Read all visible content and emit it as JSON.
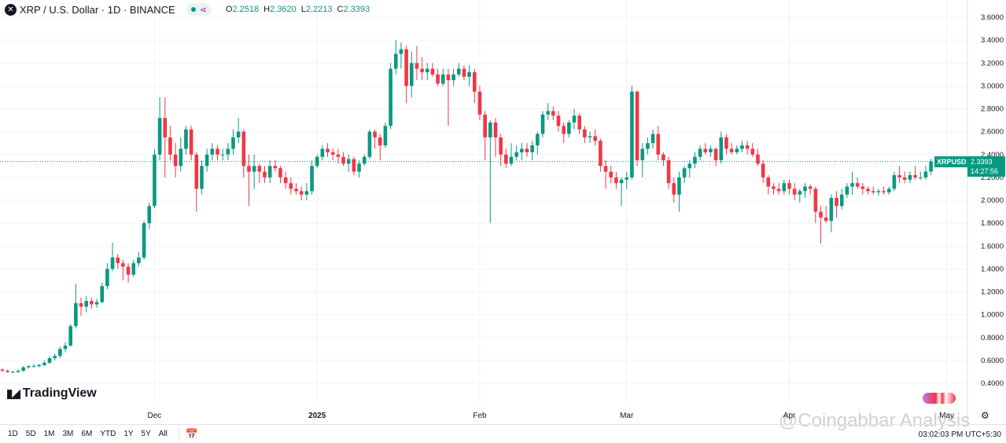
{
  "header": {
    "symbol_icon": "xrp-logo-icon",
    "title": "XRP / U.S. Dollar · 1D · BINANCE",
    "open_label": "O",
    "open": "2.2518",
    "high_label": "H",
    "high": "2.3620",
    "low_label": "L",
    "low": "2.2213",
    "close_label": "C",
    "close": "2.3393"
  },
  "brand": "TradingView",
  "price_tag": {
    "symbol": "XRPUSD",
    "price": "2.3393",
    "countdown": "14:27:56"
  },
  "ranges": [
    "1D",
    "5D",
    "1M",
    "3M",
    "6M",
    "YTD",
    "1Y",
    "5Y",
    "All"
  ],
  "clock": "03:02:03 PM UTC+5:30",
  "watermark": "@Coingabbar Analysis",
  "colors": {
    "up": "#089981",
    "down": "#f23645",
    "last_price_line": "#089981"
  },
  "chart_data": {
    "type": "candlestick",
    "interval": "1D",
    "x_start": "2024-11-02",
    "x_tick_labels": [
      {
        "label": "Dec",
        "date": "2024-12-01"
      },
      {
        "label": "2025",
        "date": "2025-01-01"
      },
      {
        "label": "Feb",
        "date": "2025-02-01"
      },
      {
        "label": "Mar",
        "date": "2025-03-01"
      },
      {
        "label": "Apr",
        "date": "2025-04-01"
      },
      {
        "label": "May",
        "date": "2025-05-01"
      }
    ],
    "y_ticks": [
      "3.6000",
      "3.4000",
      "3.2000",
      "3.0000",
      "2.8000",
      "2.6000",
      "2.4000",
      "2.2000",
      "2.0000",
      "1.8000",
      "1.6000",
      "1.4000",
      "1.2000",
      "1.0000",
      "0.8000",
      "0.6000",
      "0.4000"
    ],
    "ylim": [
      0.4,
      3.6
    ],
    "grid": true,
    "last_price": 2.3393,
    "candles_ohlc": [
      [
        0.52,
        0.53,
        0.5,
        0.51
      ],
      [
        0.51,
        0.52,
        0.49,
        0.5
      ],
      [
        0.5,
        0.51,
        0.49,
        0.5
      ],
      [
        0.5,
        0.52,
        0.49,
        0.51
      ],
      [
        0.51,
        0.55,
        0.5,
        0.54
      ],
      [
        0.54,
        0.56,
        0.53,
        0.55
      ],
      [
        0.55,
        0.57,
        0.54,
        0.55
      ],
      [
        0.55,
        0.57,
        0.54,
        0.56
      ],
      [
        0.56,
        0.6,
        0.55,
        0.58
      ],
      [
        0.58,
        0.64,
        0.57,
        0.62
      ],
      [
        0.62,
        0.66,
        0.6,
        0.64
      ],
      [
        0.64,
        0.72,
        0.62,
        0.7
      ],
      [
        0.7,
        0.76,
        0.67,
        0.73
      ],
      [
        0.73,
        0.92,
        0.72,
        0.9
      ],
      [
        0.9,
        1.27,
        0.88,
        1.1
      ],
      [
        1.1,
        1.15,
        0.99,
        1.07
      ],
      [
        1.07,
        1.16,
        1.02,
        1.12
      ],
      [
        1.12,
        1.15,
        1.05,
        1.09
      ],
      [
        1.09,
        1.14,
        1.06,
        1.11
      ],
      [
        1.11,
        1.28,
        1.1,
        1.25
      ],
      [
        1.25,
        1.45,
        1.22,
        1.4
      ],
      [
        1.4,
        1.63,
        1.38,
        1.5
      ],
      [
        1.5,
        1.53,
        1.4,
        1.45
      ],
      [
        1.45,
        1.48,
        1.3,
        1.42
      ],
      [
        1.42,
        1.45,
        1.28,
        1.35
      ],
      [
        1.35,
        1.48,
        1.33,
        1.45
      ],
      [
        1.45,
        1.55,
        1.42,
        1.5
      ],
      [
        1.5,
        1.82,
        1.48,
        1.8
      ],
      [
        1.8,
        1.98,
        1.75,
        1.95
      ],
      [
        1.95,
        2.45,
        1.93,
        2.4
      ],
      [
        2.4,
        2.9,
        2.35,
        2.72
      ],
      [
        2.72,
        2.9,
        2.2,
        2.55
      ],
      [
        2.55,
        2.65,
        2.35,
        2.4
      ],
      [
        2.4,
        2.5,
        2.2,
        2.3
      ],
      [
        2.3,
        2.55,
        2.25,
        2.45
      ],
      [
        2.45,
        2.65,
        2.4,
        2.62
      ],
      [
        2.62,
        2.65,
        2.35,
        2.4
      ],
      [
        2.4,
        2.42,
        1.9,
        2.1
      ],
      [
        2.1,
        2.35,
        2.05,
        2.3
      ],
      [
        2.3,
        2.45,
        2.25,
        2.4
      ],
      [
        2.4,
        2.5,
        2.35,
        2.45
      ],
      [
        2.45,
        2.48,
        2.35,
        2.4
      ],
      [
        2.4,
        2.45,
        2.35,
        2.4
      ],
      [
        2.4,
        2.5,
        2.35,
        2.45
      ],
      [
        2.45,
        2.62,
        2.4,
        2.55
      ],
      [
        2.55,
        2.72,
        2.5,
        2.6
      ],
      [
        2.6,
        2.62,
        2.2,
        2.3
      ],
      [
        2.3,
        2.4,
        1.95,
        2.25
      ],
      [
        2.25,
        2.4,
        2.1,
        2.3
      ],
      [
        2.3,
        2.32,
        2.15,
        2.25
      ],
      [
        2.25,
        2.3,
        2.15,
        2.2
      ],
      [
        2.2,
        2.35,
        2.15,
        2.3
      ],
      [
        2.3,
        2.35,
        2.25,
        2.28
      ],
      [
        2.28,
        2.3,
        2.15,
        2.2
      ],
      [
        2.2,
        2.25,
        2.1,
        2.15
      ],
      [
        2.15,
        2.2,
        2.05,
        2.1
      ],
      [
        2.1,
        2.15,
        2.05,
        2.08
      ],
      [
        2.08,
        2.12,
        2.0,
        2.05
      ],
      [
        2.05,
        2.15,
        2.0,
        2.08
      ],
      [
        2.08,
        2.35,
        2.05,
        2.3
      ],
      [
        2.3,
        2.4,
        2.28,
        2.38
      ],
      [
        2.38,
        2.48,
        2.35,
        2.45
      ],
      [
        2.45,
        2.5,
        2.38,
        2.42
      ],
      [
        2.42,
        2.45,
        2.35,
        2.4
      ],
      [
        2.4,
        2.45,
        2.32,
        2.38
      ],
      [
        2.38,
        2.42,
        2.3,
        2.32
      ],
      [
        2.32,
        2.4,
        2.25,
        2.36
      ],
      [
        2.36,
        2.38,
        2.22,
        2.25
      ],
      [
        2.25,
        2.35,
        2.2,
        2.32
      ],
      [
        2.32,
        2.4,
        2.3,
        2.38
      ],
      [
        2.38,
        2.62,
        2.36,
        2.6
      ],
      [
        2.6,
        2.62,
        2.45,
        2.55
      ],
      [
        2.55,
        2.58,
        2.35,
        2.48
      ],
      [
        2.48,
        2.68,
        2.46,
        2.65
      ],
      [
        2.65,
        3.2,
        2.62,
        3.15
      ],
      [
        3.15,
        3.4,
        3.1,
        3.28
      ],
      [
        3.28,
        3.38,
        3.15,
        3.32
      ],
      [
        3.32,
        3.35,
        2.85,
        3.0
      ],
      [
        3.0,
        3.3,
        2.9,
        3.2
      ],
      [
        3.2,
        3.35,
        3.05,
        3.15
      ],
      [
        3.15,
        3.25,
        3.05,
        3.12
      ],
      [
        3.12,
        3.2,
        3.05,
        3.15
      ],
      [
        3.15,
        3.2,
        3.08,
        3.1
      ],
      [
        3.1,
        3.15,
        3.0,
        3.02
      ],
      [
        3.02,
        3.15,
        3.0,
        3.1
      ],
      [
        3.1,
        3.15,
        2.65,
        3.05
      ],
      [
        3.05,
        3.15,
        3.0,
        3.1
      ],
      [
        3.1,
        3.2,
        3.08,
        3.15
      ],
      [
        3.15,
        3.18,
        3.05,
        3.08
      ],
      [
        3.08,
        3.18,
        3.0,
        3.12
      ],
      [
        3.12,
        3.15,
        2.85,
        2.95
      ],
      [
        2.95,
        3.0,
        2.7,
        2.75
      ],
      [
        2.75,
        2.78,
        2.35,
        2.55
      ],
      [
        2.55,
        2.7,
        1.8,
        2.68
      ],
      [
        2.68,
        2.72,
        2.38,
        2.55
      ],
      [
        2.55,
        2.58,
        2.3,
        2.4
      ],
      [
        2.4,
        2.45,
        2.28,
        2.32
      ],
      [
        2.32,
        2.5,
        2.3,
        2.38
      ],
      [
        2.38,
        2.48,
        2.35,
        2.42
      ],
      [
        2.42,
        2.5,
        2.35,
        2.45
      ],
      [
        2.45,
        2.5,
        2.38,
        2.42
      ],
      [
        2.42,
        2.52,
        2.35,
        2.48
      ],
      [
        2.48,
        2.6,
        2.4,
        2.58
      ],
      [
        2.58,
        2.78,
        2.55,
        2.75
      ],
      [
        2.75,
        2.85,
        2.7,
        2.78
      ],
      [
        2.78,
        2.82,
        2.7,
        2.74
      ],
      [
        2.74,
        2.78,
        2.6,
        2.65
      ],
      [
        2.65,
        2.68,
        2.5,
        2.58
      ],
      [
        2.58,
        2.7,
        2.55,
        2.68
      ],
      [
        2.68,
        2.8,
        2.62,
        2.74
      ],
      [
        2.74,
        2.76,
        2.58,
        2.62
      ],
      [
        2.62,
        2.65,
        2.5,
        2.55
      ],
      [
        2.55,
        2.6,
        2.5,
        2.56
      ],
      [
        2.56,
        2.62,
        2.48,
        2.52
      ],
      [
        2.52,
        2.54,
        2.25,
        2.3
      ],
      [
        2.3,
        2.35,
        2.1,
        2.25
      ],
      [
        2.25,
        2.3,
        2.15,
        2.2
      ],
      [
        2.2,
        2.25,
        2.1,
        2.15
      ],
      [
        2.15,
        2.2,
        1.95,
        2.18
      ],
      [
        2.18,
        2.25,
        2.1,
        2.2
      ],
      [
        2.2,
        3.0,
        2.18,
        2.95
      ],
      [
        2.95,
        2.96,
        2.3,
        2.35
      ],
      [
        2.35,
        2.5,
        2.2,
        2.45
      ],
      [
        2.45,
        2.55,
        2.4,
        2.5
      ],
      [
        2.5,
        2.62,
        2.45,
        2.58
      ],
      [
        2.58,
        2.65,
        2.35,
        2.4
      ],
      [
        2.4,
        2.42,
        2.3,
        2.35
      ],
      [
        2.35,
        2.38,
        2.1,
        2.15
      ],
      [
        2.15,
        2.2,
        1.98,
        2.05
      ],
      [
        2.05,
        2.25,
        1.9,
        2.2
      ],
      [
        2.2,
        2.3,
        2.15,
        2.28
      ],
      [
        2.28,
        2.35,
        2.2,
        2.32
      ],
      [
        2.32,
        2.42,
        2.28,
        2.38
      ],
      [
        2.38,
        2.48,
        2.35,
        2.45
      ],
      [
        2.45,
        2.5,
        2.4,
        2.42
      ],
      [
        2.42,
        2.48,
        2.38,
        2.45
      ],
      [
        2.45,
        2.46,
        2.3,
        2.35
      ],
      [
        2.35,
        2.6,
        2.32,
        2.55
      ],
      [
        2.55,
        2.58,
        2.4,
        2.45
      ],
      [
        2.45,
        2.5,
        2.4,
        2.42
      ],
      [
        2.42,
        2.48,
        2.4,
        2.45
      ],
      [
        2.45,
        2.52,
        2.42,
        2.48
      ],
      [
        2.48,
        2.52,
        2.4,
        2.45
      ],
      [
        2.45,
        2.5,
        2.38,
        2.4
      ],
      [
        2.4,
        2.45,
        2.3,
        2.32
      ],
      [
        2.32,
        2.35,
        2.15,
        2.2
      ],
      [
        2.2,
        2.22,
        2.05,
        2.12
      ],
      [
        2.12,
        2.15,
        2.05,
        2.1
      ],
      [
        2.1,
        2.15,
        2.05,
        2.08
      ],
      [
        2.08,
        2.18,
        2.05,
        2.15
      ],
      [
        2.15,
        2.18,
        2.05,
        2.1
      ],
      [
        2.1,
        2.15,
        2.0,
        2.05
      ],
      [
        2.05,
        2.1,
        1.98,
        2.08
      ],
      [
        2.08,
        2.15,
        2.02,
        2.12
      ],
      [
        2.12,
        2.14,
        2.05,
        2.1
      ],
      [
        2.1,
        2.12,
        1.8,
        1.9
      ],
      [
        1.9,
        1.95,
        1.62,
        1.85
      ],
      [
        1.85,
        1.95,
        1.8,
        1.82
      ],
      [
        1.82,
        2.05,
        1.72,
        2.02
      ],
      [
        2.02,
        2.08,
        1.85,
        1.95
      ],
      [
        1.95,
        2.1,
        1.92,
        2.05
      ],
      [
        2.05,
        2.15,
        2.02,
        2.12
      ],
      [
        2.12,
        2.25,
        2.05,
        2.15
      ],
      [
        2.15,
        2.2,
        2.1,
        2.12
      ],
      [
        2.12,
        2.15,
        2.05,
        2.1
      ],
      [
        2.1,
        2.12,
        2.05,
        2.08
      ],
      [
        2.08,
        2.12,
        2.05,
        2.07
      ],
      [
        2.07,
        2.1,
        2.04,
        2.08
      ],
      [
        2.08,
        2.12,
        2.05,
        2.07
      ],
      [
        2.07,
        2.12,
        2.05,
        2.1
      ],
      [
        2.1,
        2.25,
        2.08,
        2.22
      ],
      [
        2.22,
        2.3,
        2.15,
        2.2
      ],
      [
        2.2,
        2.25,
        2.15,
        2.18
      ],
      [
        2.18,
        2.25,
        2.15,
        2.22
      ],
      [
        2.22,
        2.3,
        2.18,
        2.2
      ],
      [
        2.2,
        2.25,
        2.18,
        2.2
      ],
      [
        2.2,
        2.3,
        2.18,
        2.2518
      ],
      [
        2.2518,
        2.362,
        2.2213,
        2.3393
      ]
    ]
  }
}
